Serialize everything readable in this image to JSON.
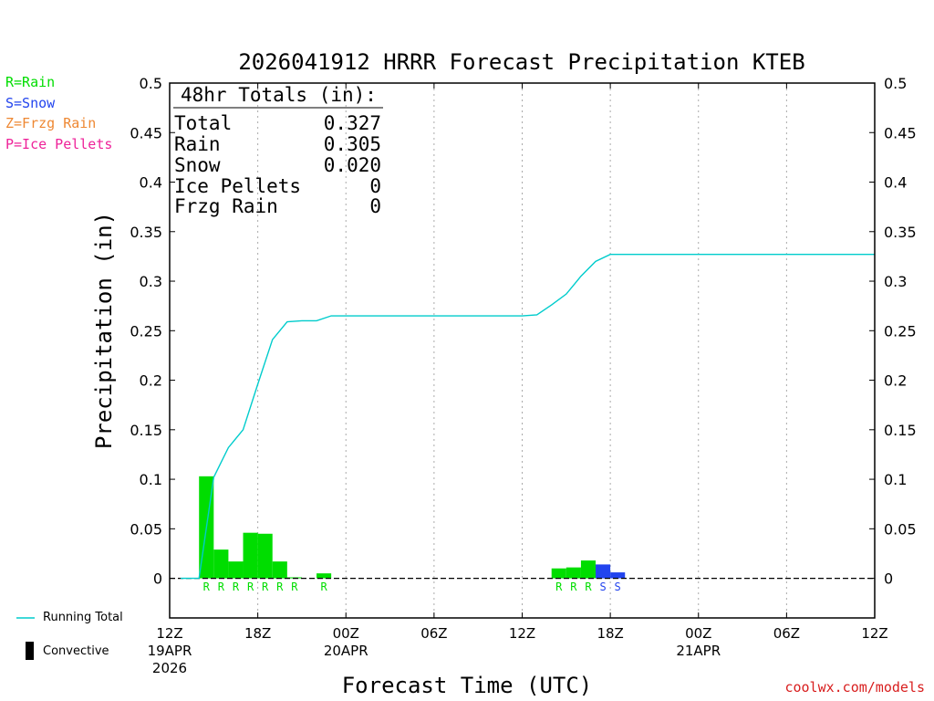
{
  "page": {
    "credit": "coolwx.com/models"
  },
  "precip_type_legend": [
    {
      "text": "R=Rain",
      "color": "#00dd00"
    },
    {
      "text": "S=Snow",
      "color": "#2244ee"
    },
    {
      "text": "Z=Frzg Rain",
      "color": "#ee8833"
    },
    {
      "text": "P=Ice Pellets",
      "color": "#ee2299"
    }
  ],
  "bottom_legend": {
    "running_total": "Running Total",
    "convective": "Convective"
  },
  "totals_box": {
    "header": "48hr Totals (in):",
    "rows": [
      {
        "label": "Total",
        "value": "0.327"
      },
      {
        "label": "Rain",
        "value": "0.305"
      },
      {
        "label": "Snow",
        "value": "0.020"
      },
      {
        "label": "Ice Pellets",
        "value": "0"
      },
      {
        "label": "Frzg Rain",
        "value": "0"
      }
    ]
  },
  "chart_data": {
    "type": "bar",
    "title": "2026041912 HRRR Forecast Precipitation KTEB",
    "xlabel": "Forecast Time (UTC)",
    "ylabel": "Precipitation (in)",
    "ylim": [
      -0.04,
      0.5
    ],
    "y_ticks": [
      0,
      0.05,
      0.1,
      0.15,
      0.2,
      0.25,
      0.3,
      0.35,
      0.4,
      0.45,
      0.5
    ],
    "y_tick_labels": [
      "0",
      "0.05",
      "0.1",
      "0.15",
      "0.2",
      "0.25",
      "0.3",
      "0.35",
      "0.4",
      "0.45",
      "0.5"
    ],
    "x_range_hours": [
      0,
      48
    ],
    "x_ticks": [
      {
        "hour": 0,
        "lines": [
          "12Z",
          "19APR",
          "2026"
        ]
      },
      {
        "hour": 6,
        "lines": [
          "18Z"
        ]
      },
      {
        "hour": 12,
        "lines": [
          "00Z",
          "20APR"
        ]
      },
      {
        "hour": 18,
        "lines": [
          "06Z"
        ]
      },
      {
        "hour": 24,
        "lines": [
          "12Z"
        ]
      },
      {
        "hour": 30,
        "lines": [
          "18Z"
        ]
      },
      {
        "hour": 36,
        "lines": [
          "00Z",
          "21APR"
        ]
      },
      {
        "hour": 42,
        "lines": [
          "06Z"
        ]
      },
      {
        "hour": 48,
        "lines": [
          "12Z"
        ]
      }
    ],
    "grid": "vertical dotted at 6-hour intervals",
    "colors": {
      "rain": "#00dd00",
      "snow": "#2244ee",
      "running_total": "#00cccc",
      "zero_line": "#000000"
    },
    "bars": [
      {
        "hour": 2.5,
        "value": 0.103,
        "type": "R"
      },
      {
        "hour": 3.5,
        "value": 0.029,
        "type": "R"
      },
      {
        "hour": 4.5,
        "value": 0.017,
        "type": "R"
      },
      {
        "hour": 5.5,
        "value": 0.046,
        "type": "R"
      },
      {
        "hour": 6.5,
        "value": 0.045,
        "type": "R"
      },
      {
        "hour": 7.5,
        "value": 0.017,
        "type": "R"
      },
      {
        "hour": 8.5,
        "value": 0.001,
        "type": "R"
      },
      {
        "hour": 10.5,
        "value": 0.005,
        "type": "R"
      },
      {
        "hour": 26.5,
        "value": 0.01,
        "type": "R"
      },
      {
        "hour": 27.5,
        "value": 0.011,
        "type": "R"
      },
      {
        "hour": 28.5,
        "value": 0.018,
        "type": "R"
      },
      {
        "hour": 29.5,
        "value": 0.014,
        "type": "S"
      },
      {
        "hour": 30.5,
        "value": 0.006,
        "type": "S"
      }
    ],
    "running_total": {
      "hours": [
        0.75,
        2,
        3,
        4,
        5,
        6,
        7,
        8,
        9,
        10,
        11,
        12,
        13,
        14,
        15,
        16,
        17,
        18,
        19,
        20,
        21,
        22,
        23,
        24,
        25,
        26,
        27,
        28,
        29,
        30,
        31,
        32,
        33,
        34,
        35,
        36,
        37,
        38,
        39,
        40,
        41,
        42,
        43,
        44,
        45,
        46,
        47,
        48
      ],
      "values": [
        0,
        0,
        0.102,
        0.132,
        0.15,
        0.196,
        0.241,
        0.259,
        0.26,
        0.26,
        0.265,
        0.265,
        0.265,
        0.265,
        0.265,
        0.265,
        0.265,
        0.265,
        0.265,
        0.265,
        0.265,
        0.265,
        0.265,
        0.265,
        0.266,
        0.276,
        0.287,
        0.305,
        0.32,
        0.327,
        0.327,
        0.327,
        0.327,
        0.327,
        0.327,
        0.327,
        0.327,
        0.327,
        0.327,
        0.327,
        0.327,
        0.327,
        0.327,
        0.327,
        0.327,
        0.327,
        0.327,
        0.327
      ]
    }
  }
}
